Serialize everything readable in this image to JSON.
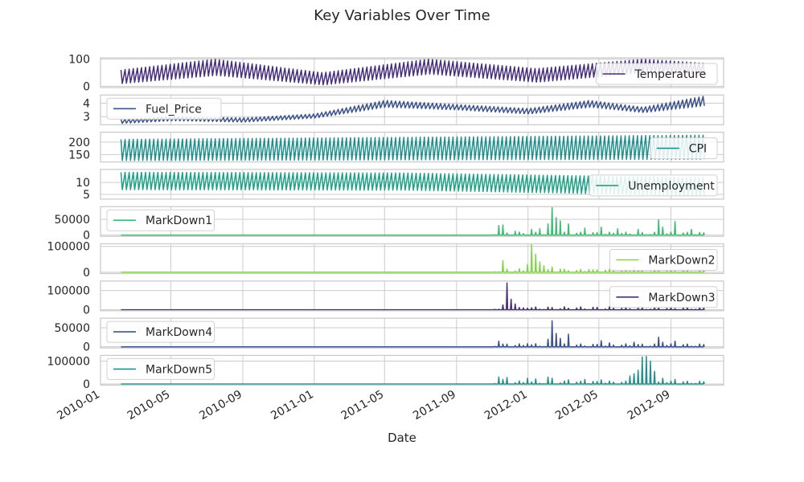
{
  "chart_data": {
    "type": "line",
    "title": "Key Variables Over Time",
    "xlabel": "Date",
    "x_ticks": [
      "2010-01",
      "2010-05",
      "2010-09",
      "2011-01",
      "2011-05",
      "2011-09",
      "2012-01",
      "2012-05",
      "2012-09"
    ],
    "xlim": [
      "2010-01-01",
      "2012-11-30"
    ],
    "date_range": [
      "2010-02-05",
      "2012-10-26"
    ],
    "frequency": "weekly (many stores overlaid)",
    "grid": true,
    "panels": [
      {
        "series": "Temperature",
        "color": "#472f7d",
        "ylim": [
          -5,
          105
        ],
        "yticks": [
          "0",
          "100"
        ],
        "legend": "lower-right",
        "envelope": [
          [
            "2010-02-05",
            10,
            60
          ],
          [
            "2010-07-15",
            40,
            100
          ],
          [
            "2011-01-15",
            5,
            50
          ],
          [
            "2011-07-15",
            45,
            100
          ],
          [
            "2012-01-15",
            15,
            65
          ],
          [
            "2012-07-15",
            50,
            100
          ],
          [
            "2012-10-26",
            45,
            85
          ]
        ]
      },
      {
        "series": "Fuel_Price",
        "color": "#3b528b",
        "ylim": [
          2.4,
          4.6
        ],
        "yticks": [
          "3",
          "4"
        ],
        "legend": "upper-left",
        "envelope": [
          [
            "2010-02-05",
            2.5,
            2.8
          ],
          [
            "2010-05-01",
            2.7,
            3.0
          ],
          [
            "2010-09-01",
            2.6,
            2.9
          ],
          [
            "2011-01-01",
            2.9,
            3.2
          ],
          [
            "2011-05-01",
            3.7,
            4.2
          ],
          [
            "2011-09-01",
            3.5,
            3.9
          ],
          [
            "2012-01-01",
            3.2,
            3.6
          ],
          [
            "2012-04-15",
            3.7,
            4.2
          ],
          [
            "2012-07-15",
            3.3,
            3.7
          ],
          [
            "2012-10-26",
            3.8,
            4.5
          ]
        ]
      },
      {
        "series": "CPI",
        "color": "#21908d",
        "ylim": [
          120,
          240
        ],
        "yticks": [
          "150",
          "200"
        ],
        "legend": "lower-right",
        "envelope": [
          [
            "2010-02-05",
            126,
            211
          ],
          [
            "2012-10-26",
            131,
            228
          ]
        ]
      },
      {
        "series": "Unemployment",
        "color": "#1fa187",
        "ylim": [
          3,
          15.5
        ],
        "yticks": [
          "5",
          "10"
        ],
        "legend": "lower-right",
        "envelope": [
          [
            "2010-02-05",
            7.0,
            14.3
          ],
          [
            "2011-06-01",
            6.8,
            14.0
          ],
          [
            "2012-10-26",
            4.5,
            12.0
          ]
        ]
      },
      {
        "series": "MarkDown1",
        "color": "#3fbc73",
        "ylim": [
          -4000,
          90000
        ],
        "yticks": [
          "0",
          "50000"
        ],
        "legend": "upper-left",
        "spikes": [
          [
            "2011-11-11",
            30000
          ],
          [
            "2011-11-18",
            32000
          ],
          [
            "2011-12-09",
            12000
          ],
          [
            "2012-01-06",
            18000
          ],
          [
            "2012-01-20",
            20000
          ],
          [
            "2012-02-03",
            35000
          ],
          [
            "2012-02-10",
            88000
          ],
          [
            "2012-02-17",
            55000
          ],
          [
            "2012-02-24",
            45000
          ],
          [
            "2012-03-09",
            35000
          ],
          [
            "2012-04-06",
            22000
          ],
          [
            "2012-05-04",
            25000
          ],
          [
            "2012-06-01",
            20000
          ],
          [
            "2012-07-06",
            18000
          ],
          [
            "2012-08-10",
            48000
          ],
          [
            "2012-08-17",
            25000
          ],
          [
            "2012-09-07",
            43000
          ],
          [
            "2012-10-05",
            18000
          ]
        ]
      },
      {
        "series": "MarkDown2",
        "color": "#84d44b",
        "ylim": [
          -5000,
          110000
        ],
        "yticks": [
          "0",
          "100000"
        ],
        "legend": "lower-right",
        "spikes": [
          [
            "2011-11-18",
            45000
          ],
          [
            "2011-11-25",
            12000
          ],
          [
            "2011-12-16",
            14000
          ],
          [
            "2011-12-30",
            30000
          ],
          [
            "2012-01-06",
            110000
          ],
          [
            "2012-01-13",
            70000
          ],
          [
            "2012-01-20",
            40000
          ],
          [
            "2012-01-27",
            25000
          ],
          [
            "2012-02-10",
            20000
          ],
          [
            "2012-02-24",
            12000
          ],
          [
            "2012-04-13",
            10000
          ],
          [
            "2012-05-11",
            8000
          ],
          [
            "2012-06-29",
            20000
          ],
          [
            "2012-07-13",
            8000
          ]
        ]
      },
      {
        "series": "MarkDown3",
        "color": "#472f7d",
        "ylim": [
          -5000,
          150000
        ],
        "yticks": [
          "0",
          "100000"
        ],
        "legend": "lower-right",
        "spikes": [
          [
            "2011-11-18",
            25000
          ],
          [
            "2011-11-25",
            140000
          ],
          [
            "2011-12-02",
            55000
          ],
          [
            "2011-12-09",
            30000
          ],
          [
            "2011-12-16",
            12000
          ],
          [
            "2011-12-23",
            10000
          ],
          [
            "2011-12-30",
            8000
          ]
        ]
      },
      {
        "series": "MarkDown4",
        "color": "#3b528b",
        "ylim": [
          -3000,
          75000
        ],
        "yticks": [
          "0",
          "50000"
        ],
        "legend": "upper-left",
        "spikes": [
          [
            "2011-11-11",
            15000
          ],
          [
            "2011-11-25",
            7000
          ],
          [
            "2011-12-30",
            8000
          ],
          [
            "2012-01-13",
            8000
          ],
          [
            "2012-02-03",
            20000
          ],
          [
            "2012-02-10",
            68000
          ],
          [
            "2012-02-17",
            35000
          ],
          [
            "2012-02-24",
            22000
          ],
          [
            "2012-03-09",
            33000
          ],
          [
            "2012-05-04",
            16000
          ],
          [
            "2012-05-18",
            10000
          ],
          [
            "2012-06-29",
            12000
          ],
          [
            "2012-08-10",
            25000
          ],
          [
            "2012-08-17",
            12000
          ],
          [
            "2012-09-07",
            15000
          ]
        ]
      },
      {
        "series": "MarkDown5",
        "color": "#21908d",
        "ylim": [
          -5000,
          125000
        ],
        "yticks": [
          "0",
          "100000"
        ],
        "legend": "upper-left",
        "spikes": [
          [
            "2011-11-11",
            30000
          ],
          [
            "2011-11-18",
            20000
          ],
          [
            "2011-11-25",
            28000
          ],
          [
            "2011-12-30",
            25000
          ],
          [
            "2012-01-13",
            22000
          ],
          [
            "2012-02-03",
            30000
          ],
          [
            "2012-02-10",
            25000
          ],
          [
            "2012-03-09",
            18000
          ],
          [
            "2012-04-06",
            20000
          ],
          [
            "2012-05-04",
            18000
          ],
          [
            "2012-06-22",
            35000
          ],
          [
            "2012-06-29",
            45000
          ],
          [
            "2012-07-06",
            60000
          ],
          [
            "2012-07-13",
            118000
          ],
          [
            "2012-07-20",
            120000
          ],
          [
            "2012-07-27",
            100000
          ],
          [
            "2012-08-03",
            55000
          ],
          [
            "2012-08-17",
            25000
          ],
          [
            "2012-09-07",
            20000
          ]
        ]
      }
    ]
  }
}
